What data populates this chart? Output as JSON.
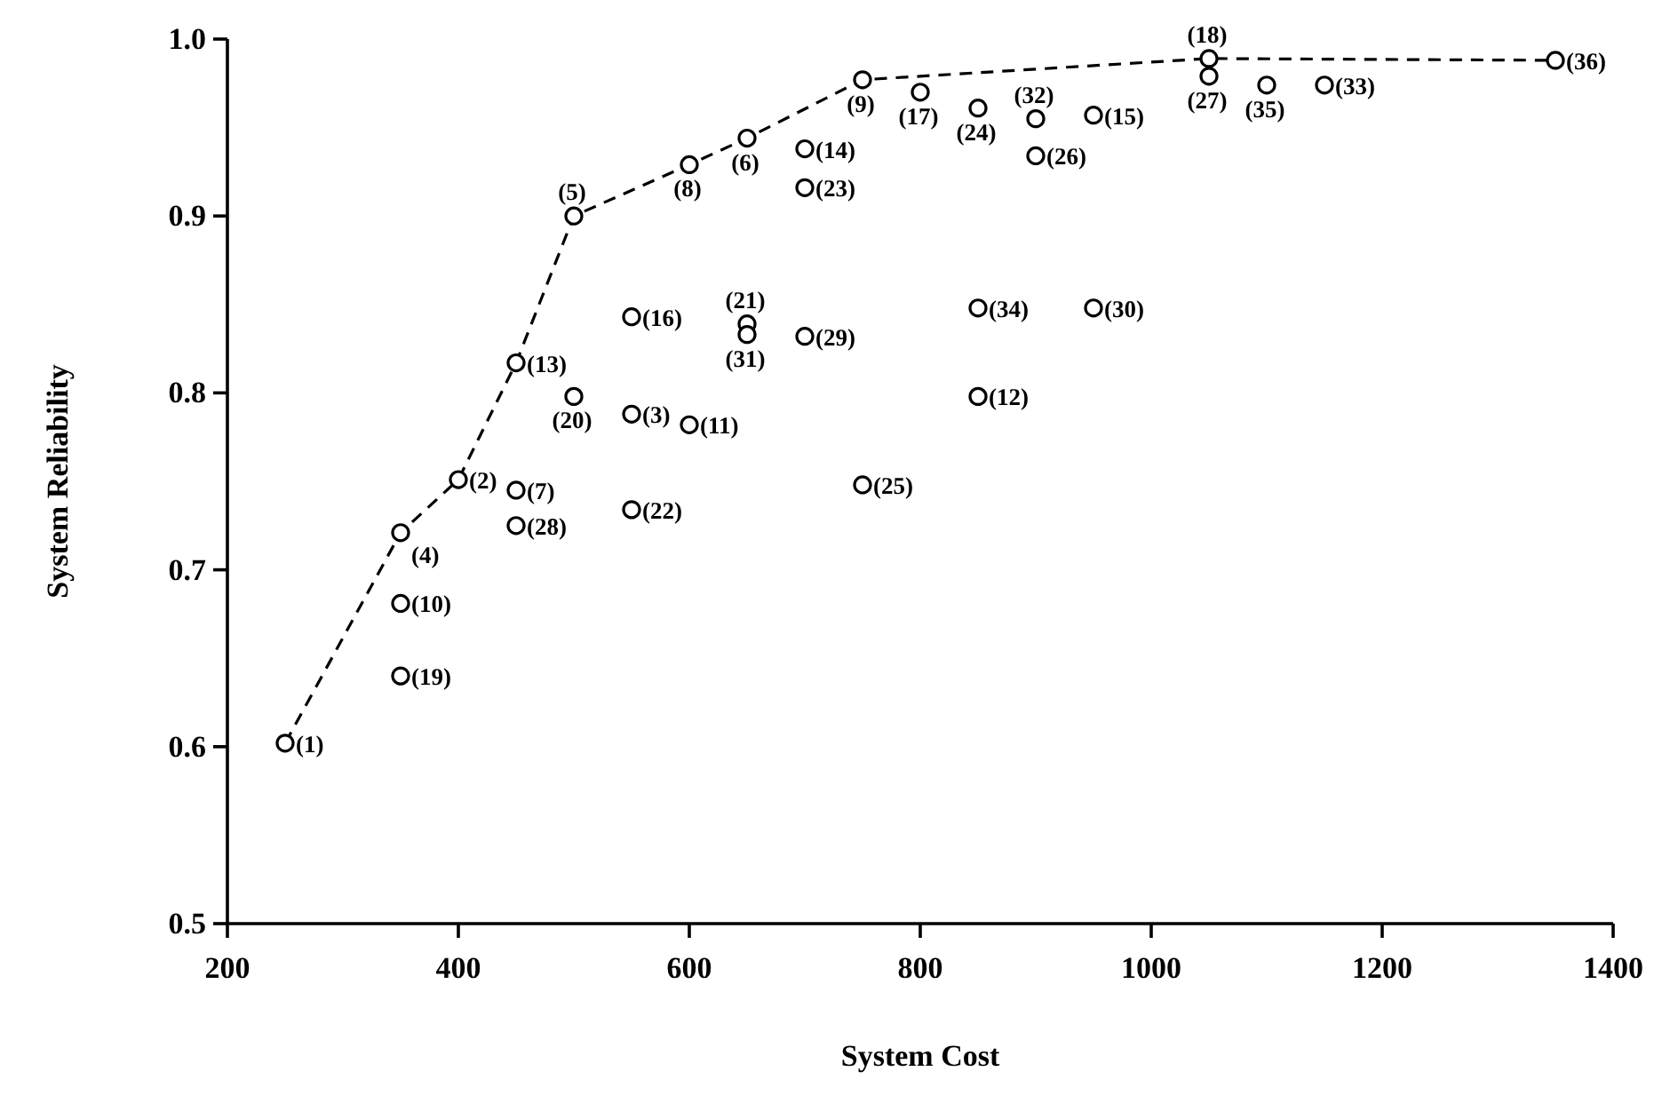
{
  "chart_data": {
    "type": "scatter",
    "xlabel": "System Cost",
    "ylabel": "System Reliability",
    "xlim": [
      200,
      1400
    ],
    "xticks": [
      200,
      400,
      600,
      800,
      1000,
      1200,
      1400
    ],
    "ylim": [
      0.5,
      1.0
    ],
    "yticks": [
      {
        "value": 0.5,
        "label": "0.5"
      },
      {
        "value": 0.6,
        "label": "0.6"
      },
      {
        "value": 0.7,
        "label": "0.7"
      },
      {
        "value": 0.8,
        "label": "0.8"
      },
      {
        "value": 0.9,
        "label": "0.9"
      },
      {
        "value": 1.0,
        "label": "1.0"
      }
    ],
    "grid": false,
    "series": [
      {
        "type": "line",
        "color": "#000000",
        "line_style": "dashed",
        "marker": "none",
        "x": [
          250,
          350,
          400,
          450,
          500,
          600,
          650,
          750,
          1050,
          1350
        ],
        "values": [
          0.602,
          0.721,
          0.751,
          0.817,
          0.9,
          0.929,
          0.944,
          0.977,
          0.989,
          0.988
        ]
      },
      {
        "type": "scatter",
        "color": "#000000",
        "marker": "circle",
        "x": [
          250,
          400,
          550,
          350,
          500,
          650,
          450,
          600,
          750,
          350,
          600,
          850,
          450,
          700,
          950,
          550,
          800,
          1050,
          350,
          500,
          650,
          550,
          700,
          850,
          750,
          900,
          1050,
          450,
          700,
          950,
          650,
          900,
          1150,
          850,
          1100,
          1350
        ],
        "values": [
          0.602,
          0.751,
          0.788,
          0.721,
          0.9,
          0.944,
          0.745,
          0.929,
          0.977,
          0.681,
          0.782,
          0.798,
          0.817,
          0.938,
          0.957,
          0.843,
          0.97,
          0.989,
          0.64,
          0.798,
          0.839,
          0.734,
          0.916,
          0.961,
          0.748,
          0.934,
          0.979,
          0.725,
          0.832,
          0.848,
          0.833,
          0.955,
          0.974,
          0.848,
          0.974,
          0.988
        ]
      }
    ],
    "annotations": [
      {
        "text": "(1)",
        "x": 250,
        "y": 0.602
      },
      {
        "text": "(2)",
        "x": 400,
        "y": 0.751
      },
      {
        "text": "(3)",
        "x": 550,
        "y": 0.788
      },
      {
        "text": "(4)",
        "x": 350,
        "y": 0.721
      },
      {
        "text": "(5)",
        "x": 500,
        "y": 0.9
      },
      {
        "text": "(6)",
        "x": 650,
        "y": 0.944
      },
      {
        "text": "(7)",
        "x": 450,
        "y": 0.745
      },
      {
        "text": "(8)",
        "x": 600,
        "y": 0.929
      },
      {
        "text": "(9)",
        "x": 750,
        "y": 0.977
      },
      {
        "text": "(10)",
        "x": 350,
        "y": 0.681
      },
      {
        "text": "(11)",
        "x": 600,
        "y": 0.782
      },
      {
        "text": "(12)",
        "x": 850,
        "y": 0.798
      },
      {
        "text": "(13)",
        "x": 450,
        "y": 0.817
      },
      {
        "text": "(14)",
        "x": 700,
        "y": 0.938
      },
      {
        "text": "(15)",
        "x": 950,
        "y": 0.957
      },
      {
        "text": "(16)",
        "x": 550,
        "y": 0.843
      },
      {
        "text": "(17)",
        "x": 800,
        "y": 0.97
      },
      {
        "text": "(18)",
        "x": 1050,
        "y": 0.989
      },
      {
        "text": "(19)",
        "x": 350,
        "y": 0.64
      },
      {
        "text": "(20)",
        "x": 500,
        "y": 0.798
      },
      {
        "text": "(21)",
        "x": 650,
        "y": 0.839
      },
      {
        "text": "(22)",
        "x": 550,
        "y": 0.734
      },
      {
        "text": "(23)",
        "x": 700,
        "y": 0.916
      },
      {
        "text": "(24)",
        "x": 850,
        "y": 0.961
      },
      {
        "text": "(25)",
        "x": 750,
        "y": 0.748
      },
      {
        "text": "(26)",
        "x": 900,
        "y": 0.934
      },
      {
        "text": "(27)",
        "x": 1050,
        "y": 0.979
      },
      {
        "text": "(28)",
        "x": 450,
        "y": 0.725
      },
      {
        "text": "(29)",
        "x": 700,
        "y": 0.832
      },
      {
        "text": "(30)",
        "x": 950,
        "y": 0.848
      },
      {
        "text": "(31)",
        "x": 650,
        "y": 0.833
      },
      {
        "text": "(32)",
        "x": 900,
        "y": 0.955
      },
      {
        "text": "(33)",
        "x": 1150,
        "y": 0.974
      },
      {
        "text": "(34)",
        "x": 850,
        "y": 0.848
      },
      {
        "text": "(35)",
        "x": 1100,
        "y": 0.974
      },
      {
        "text": "(36)",
        "x": 1350,
        "y": 0.988
      }
    ]
  }
}
